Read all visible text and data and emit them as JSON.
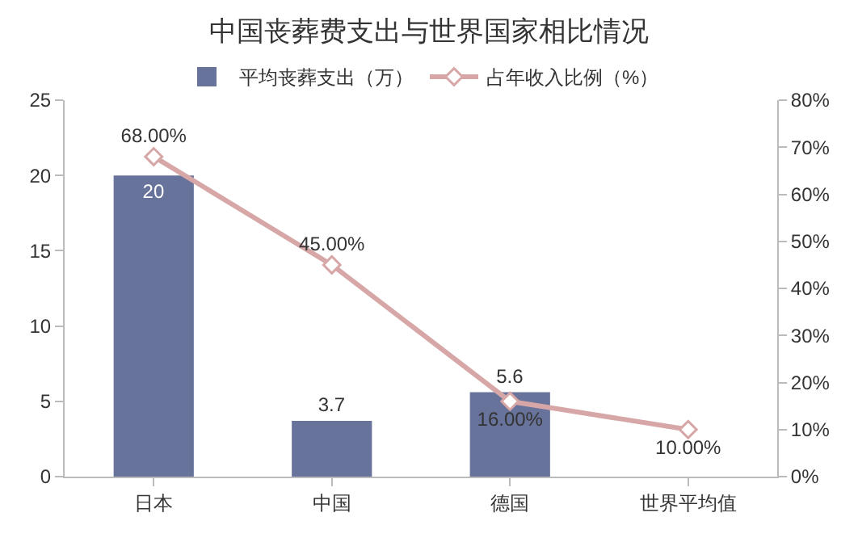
{
  "chart_data": {
    "type": "bar",
    "title": "中国丧葬费支出与世界国家相比情况",
    "categories": [
      "日本",
      "中国",
      "德国",
      "世界平均值"
    ],
    "series": [
      {
        "name": "平均丧葬支出（万）",
        "color": "#67739b",
        "values": [
          20,
          3.7,
          5.6,
          null
        ],
        "value_labels": [
          "20",
          "3.7",
          "5.6",
          null
        ]
      },
      {
        "name": "占年收入比例（%）",
        "type": "line",
        "axis": "y2",
        "color": "#d7a7a7",
        "marker": "diamond",
        "values": [
          68,
          45,
          16,
          10
        ],
        "value_labels": [
          "68.00%",
          "45.00%",
          "16.00%",
          "10.00%"
        ]
      }
    ],
    "ylim": [
      0,
      25
    ],
    "yticks": [
      0,
      5,
      10,
      15,
      20,
      25
    ],
    "y2lim": [
      0,
      80
    ],
    "y2ticks": [
      {
        "value": 0,
        "label": "0%"
      },
      {
        "value": 10,
        "label": "10%"
      },
      {
        "value": 20,
        "label": "20%"
      },
      {
        "value": 30,
        "label": "30%"
      },
      {
        "value": 40,
        "label": "40%"
      },
      {
        "value": 50,
        "label": "50%"
      },
      {
        "value": 60,
        "label": "60%"
      },
      {
        "value": 70,
        "label": "70%"
      },
      {
        "value": 80,
        "label": "80%"
      }
    ],
    "legend": "top",
    "grid": false
  }
}
